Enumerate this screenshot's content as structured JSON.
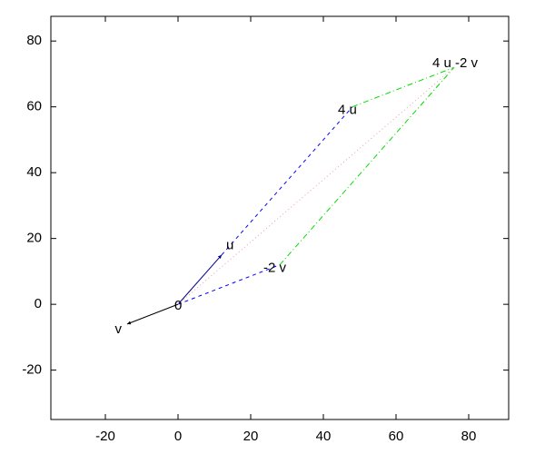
{
  "chart_data": {
    "type": "vector",
    "xlim": [
      -35,
      91
    ],
    "ylim": [
      -35,
      87.5
    ],
    "xticks": [
      -20,
      0,
      20,
      40,
      60,
      80
    ],
    "yticks": [
      -20,
      0,
      20,
      40,
      60,
      80
    ],
    "points": [
      {
        "label": "0",
        "x": 0,
        "y": 0
      },
      {
        "label": "u",
        "x": 12,
        "y": 15
      },
      {
        "label": "v",
        "x": -14,
        "y": -6
      },
      {
        "label": "4 u",
        "x": 48,
        "y": 60
      },
      {
        "label": "-2 v",
        "x": 28,
        "y": 12
      },
      {
        "label": "4 u -2 v",
        "x": 76,
        "y": 72
      }
    ],
    "segments": [
      {
        "from": 0,
        "to": 2,
        "color": "#000000",
        "dash": "solid",
        "arrow": true
      },
      {
        "from": 0,
        "to": 1,
        "color": "#00008b",
        "dash": "solid",
        "arrow": true
      },
      {
        "from": 1,
        "to": 3,
        "color": "#0000ff",
        "dash": "dashed",
        "arrow": false
      },
      {
        "from": 0,
        "to": 4,
        "color": "#0000ff",
        "dash": "dashed",
        "arrow": false
      },
      {
        "from": 3,
        "to": 5,
        "color": "#00dd00",
        "dash": "dashdot",
        "arrow": false
      },
      {
        "from": 4,
        "to": 5,
        "color": "#00dd00",
        "dash": "dashdot",
        "arrow": false
      },
      {
        "from": 0,
        "to": 5,
        "color": "#e8a0a0",
        "dash": "dotted",
        "arrow": false
      }
    ]
  }
}
